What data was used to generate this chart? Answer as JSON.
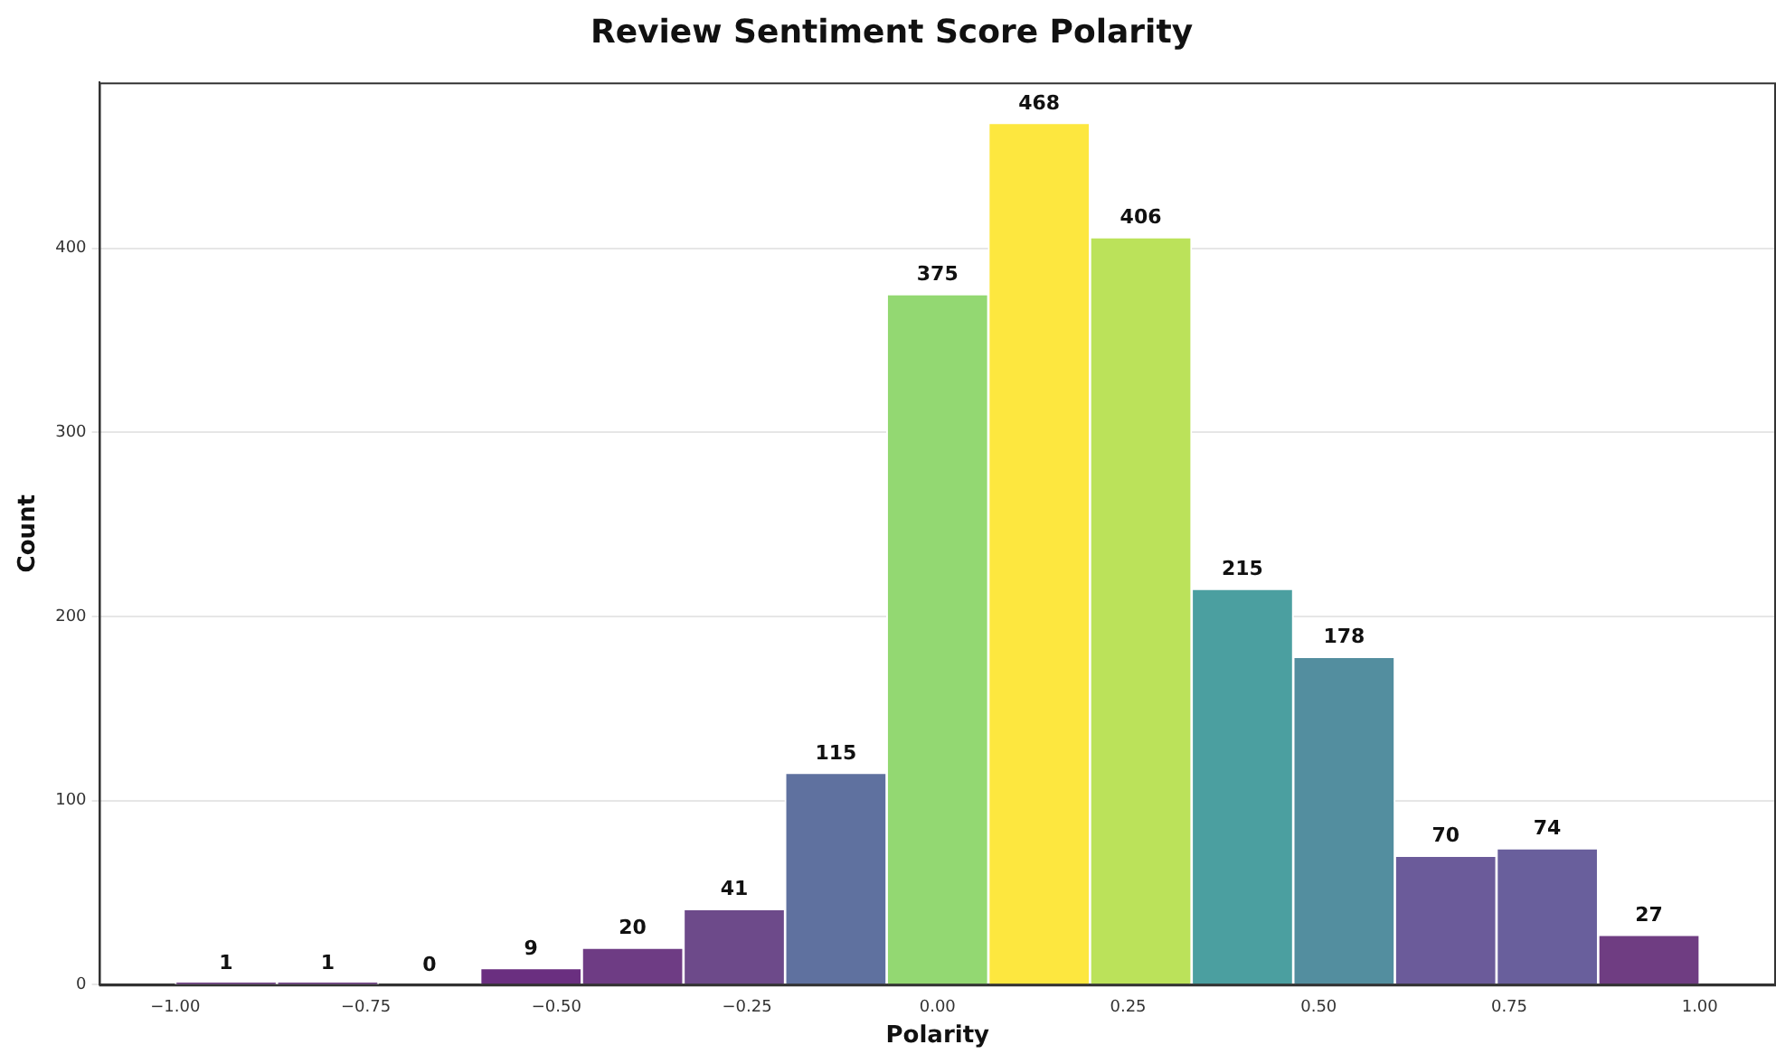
{
  "chart_data": {
    "type": "histogram",
    "title": "Review Sentiment Score Polarity",
    "xlabel": "Polarity",
    "ylabel": "Count",
    "bins": [
      -1,
      -0.8667,
      -0.7333,
      -0.6,
      -0.4667,
      -0.3333,
      -0.2,
      -0.0667,
      0.0667,
      0.2,
      0.3333,
      0.4667,
      0.6,
      0.7333,
      0.8667,
      1
    ],
    "values": [
      1,
      1,
      0,
      9,
      20,
      41,
      115,
      375,
      468,
      406,
      215,
      178,
      70,
      74,
      27
    ],
    "colors": [
      "#6a3a80",
      "#6a3a80",
      "#6a3a80",
      "#6a2f80",
      "#6e3c84",
      "#6d4a8a",
      "#5f719f",
      "#93d872",
      "#fde73f",
      "#bbe25a",
      "#4b9fa0",
      "#538e9f",
      "#6b5b9a",
      "#695f9c",
      "#6f3d82"
    ],
    "xlim": [
      -1.1,
      1.1
    ],
    "xticks": [
      {
        "value": -1,
        "label": "−1.00"
      },
      {
        "value": -0.75,
        "label": "−0.75"
      },
      {
        "value": -0.5,
        "label": "−0.50"
      },
      {
        "value": -0.25,
        "label": "−0.25"
      },
      {
        "value": 0,
        "label": "0.00"
      },
      {
        "value": 0.25,
        "label": "0.25"
      },
      {
        "value": 0.5,
        "label": "0.50"
      },
      {
        "value": 0.75,
        "label": "0.75"
      },
      {
        "value": 1,
        "label": "1.00"
      }
    ],
    "ylim": [
      0,
      490
    ],
    "yticks": [
      0,
      100,
      200,
      300,
      400
    ],
    "grid": "y",
    "data_labels": true,
    "legend": false
  }
}
